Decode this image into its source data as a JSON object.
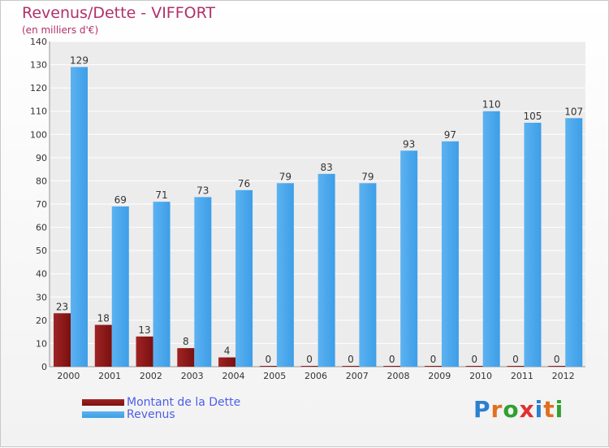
{
  "header": {
    "title": "Revenus/Dette - VIFFORT",
    "subtitle": "(en milliers d'€)"
  },
  "logo": {
    "text": "Proxiti",
    "colors": [
      "#2a80d0",
      "#e07020",
      "#30a030",
      "#e03030",
      "#2a80d0",
      "#e07020",
      "#30a030"
    ]
  },
  "colors": {
    "debt": "#7a1010",
    "revenue": "#3d9ee8",
    "title": "#b0306a",
    "legend_text": "#4c5ee8"
  },
  "chart_data": {
    "type": "bar",
    "title": "Revenus/Dette - VIFFORT",
    "ylabel": "(en milliers d'€)",
    "xlabel": "",
    "ylim": [
      0,
      140
    ],
    "yticks": [
      0,
      10,
      20,
      30,
      40,
      50,
      60,
      70,
      80,
      90,
      100,
      110,
      120,
      130,
      140
    ],
    "grid": true,
    "legend_position": "bottom-left",
    "categories": [
      "2000",
      "2001",
      "2002",
      "2003",
      "2004",
      "2005",
      "2006",
      "2007",
      "2008",
      "2009",
      "2010",
      "2011",
      "2012"
    ],
    "series": [
      {
        "name": "Montant de la Dette",
        "values": [
          23,
          18,
          13,
          8,
          4,
          0,
          0,
          0,
          0,
          0,
          0,
          0,
          0
        ]
      },
      {
        "name": "Revenus",
        "values": [
          129,
          69,
          71,
          73,
          76,
          79,
          83,
          79,
          93,
          97,
          110,
          105,
          107
        ]
      }
    ]
  }
}
